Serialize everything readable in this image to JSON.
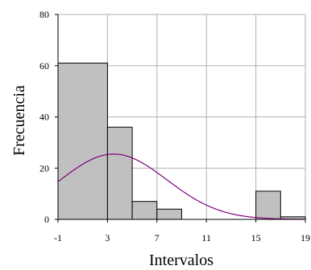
{
  "chart_data": {
    "type": "bar",
    "title": "",
    "xlabel": "Intervalos",
    "ylabel": "Frecuencia",
    "xlim": [
      -1,
      19
    ],
    "ylim": [
      0,
      80
    ],
    "x_ticks": [
      -1,
      3,
      7,
      11,
      15,
      19
    ],
    "y_ticks": [
      0,
      20,
      40,
      60,
      80
    ],
    "grid": true,
    "bars": [
      {
        "x0": -1,
        "x1": 3,
        "value": 61
      },
      {
        "x0": 3,
        "x1": 5,
        "value": 36
      },
      {
        "x0": 5,
        "x1": 7,
        "value": 7
      },
      {
        "x0": 7,
        "x1": 9,
        "value": 4
      },
      {
        "x0": 9,
        "x1": 11,
        "value": 0
      },
      {
        "x0": 11,
        "x1": 13,
        "value": 0
      },
      {
        "x0": 13,
        "x1": 15,
        "value": 0
      },
      {
        "x0": 15,
        "x1": 17,
        "value": 11
      },
      {
        "x0": 17,
        "x1": 19,
        "value": 1
      }
    ],
    "curve": {
      "type": "normal-fit",
      "mean": 3.5,
      "sd": 4.3,
      "peak": 25.5,
      "color": "#800080"
    },
    "bar_color": "#c0c0c0",
    "bar_edge_color": "#000000",
    "grid_color": "#b0b0b0"
  }
}
